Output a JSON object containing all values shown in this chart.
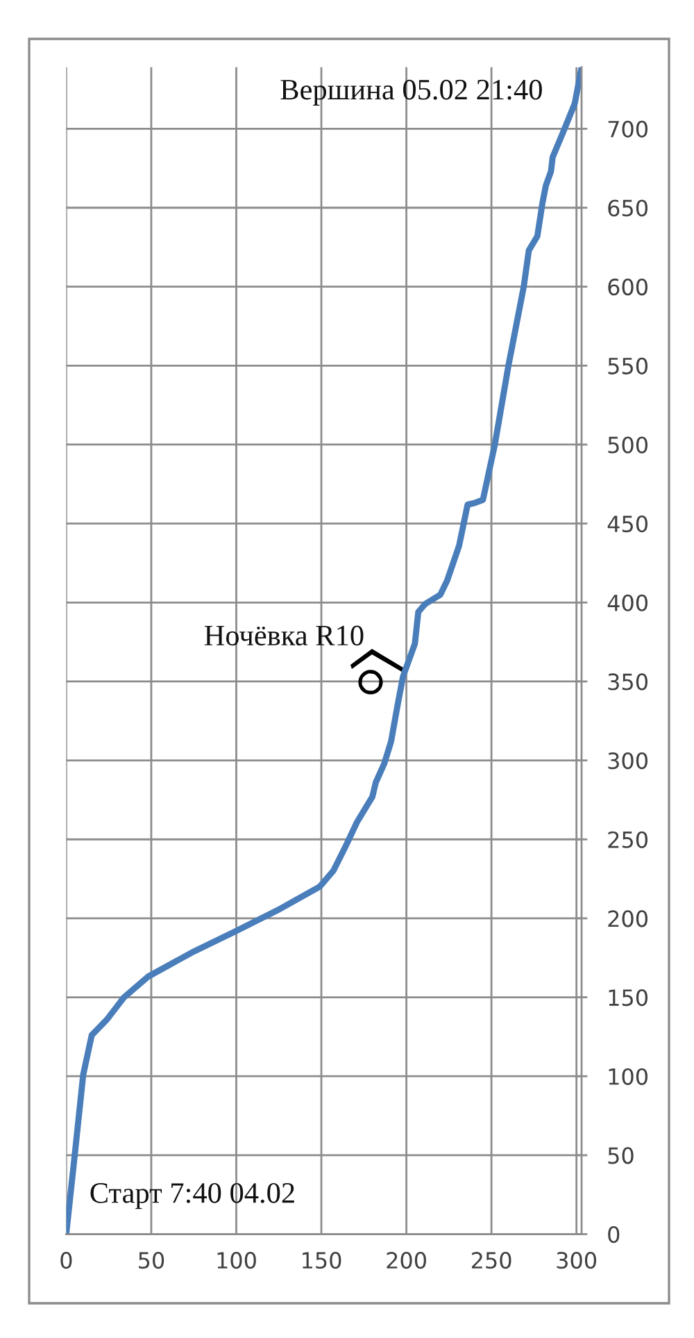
{
  "chart_data": {
    "type": "line",
    "x": [
      0,
      5,
      10,
      15,
      24,
      34,
      48,
      75,
      100,
      124,
      149,
      157,
      164,
      171,
      180,
      182,
      187,
      191,
      195,
      198,
      205,
      207,
      211,
      220,
      224,
      231,
      236,
      240,
      245,
      248,
      252,
      260,
      269,
      272,
      277,
      280,
      282,
      285,
      286,
      293,
      299,
      303
    ],
    "series": [
      {
        "color": "#4a7ebb",
        "values": [
          0,
          50,
          101,
          126,
          136,
          150,
          163,
          179,
          192,
          205,
          220,
          230,
          245,
          261,
          277,
          286,
          298,
          312,
          336,
          353,
          374,
          394,
          399,
          405,
          414,
          436,
          462,
          463,
          465,
          480,
          500,
          550,
          600,
          623,
          632,
          653,
          664,
          673,
          682,
          700,
          716,
          739
        ]
      }
    ],
    "xlim": [
      0,
      303
    ],
    "ylim": [
      0,
      739
    ],
    "xticks": [
      0,
      50,
      100,
      150,
      200,
      250,
      300
    ],
    "yticks": [
      0,
      50,
      100,
      150,
      200,
      250,
      300,
      350,
      400,
      450,
      500,
      550,
      600,
      650,
      700
    ],
    "grid": true,
    "line_style": "solid",
    "annotations": [
      {
        "text": "Вершина 05.02 21:40",
        "x": 303,
        "y": 739
      },
      {
        "text": "Ночёвка R10",
        "x": 198,
        "y": 353
      },
      {
        "text": "Старт 7:40 04.02",
        "x": 0,
        "y": 0
      }
    ]
  }
}
